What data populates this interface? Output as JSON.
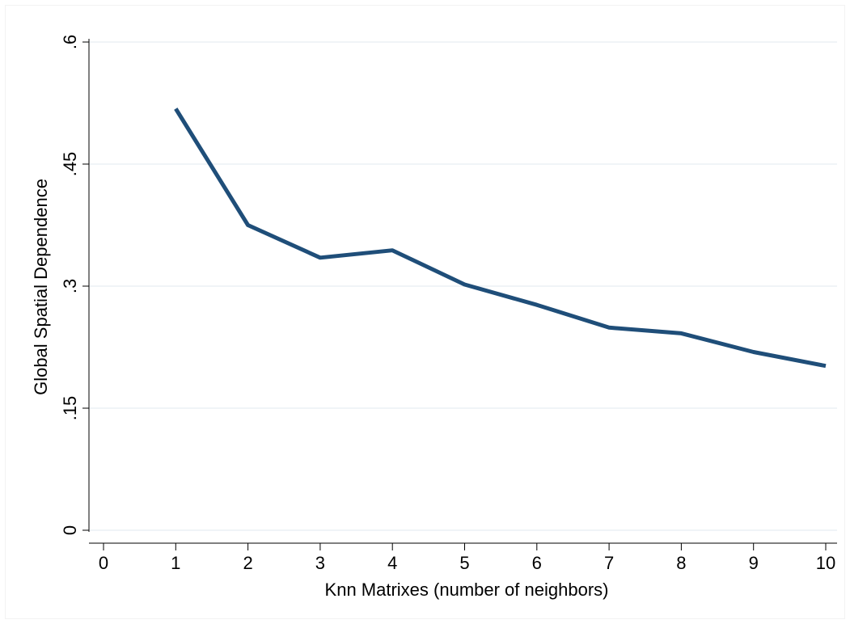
{
  "chart_data": {
    "type": "line",
    "title": "",
    "xlabel": "Knn Matrixes (number of neighbors)",
    "ylabel": "Global Spatial Dependence",
    "xlim": [
      0,
      10
    ],
    "ylim": [
      0,
      0.6
    ],
    "xticks": [
      0,
      1,
      2,
      3,
      4,
      5,
      6,
      7,
      8,
      9,
      10
    ],
    "xtick_labels": [
      "0",
      "1",
      "2",
      "3",
      "4",
      "5",
      "6",
      "7",
      "8",
      "9",
      "10"
    ],
    "yticks": [
      0,
      0.15,
      0.3,
      0.45,
      0.6
    ],
    "ytick_labels": [
      "0",
      ".15",
      ".3",
      ".45",
      ".6"
    ],
    "grid": true,
    "legend": "none",
    "line_color": "#1f4e79",
    "grid_color": "#e6edf2",
    "series": [
      {
        "x": [
          1,
          2,
          3,
          4,
          5,
          6,
          7,
          8,
          9,
          10
        ],
        "values": [
          0.518,
          0.375,
          0.335,
          0.344,
          0.302,
          0.277,
          0.249,
          0.242,
          0.219,
          0.202
        ]
      }
    ]
  }
}
